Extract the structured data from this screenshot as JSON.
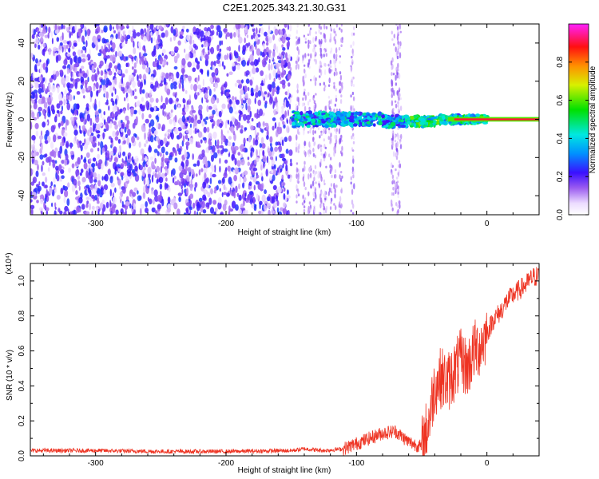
{
  "title": "C2E1.2025.343.21.30.G31",
  "chart_data": [
    {
      "type": "heatmap",
      "title": "C2E1.2025.343.21.30.G31",
      "xlabel": "Height of straight line (km)",
      "ylabel": "Frequency (Hz)",
      "xlim": [
        -350,
        40
      ],
      "ylim": [
        -50,
        50
      ],
      "x_ticks": [
        -300,
        -200,
        -100,
        0
      ],
      "y_ticks": [
        -40,
        -20,
        0,
        20,
        40
      ],
      "colorbar": {
        "label": "Normalized spectral amplitude",
        "range": [
          0,
          1
        ],
        "ticks": [
          "0.0",
          "0.2",
          "0.4",
          "0.6",
          "0.8"
        ]
      },
      "description_regions": [
        {
          "x_range": [
            -350,
            -150
          ],
          "freq_range": [
            -50,
            50
          ],
          "amplitude": 0.15
        },
        {
          "x_range": [
            -150,
            -110
          ],
          "freq_range": [
            -50,
            50
          ],
          "amplitude": 0.08
        },
        {
          "x_range": [
            -150,
            0
          ],
          "freq_range": [
            -5,
            5
          ],
          "amplitude": 0.45
        },
        {
          "x_range": [
            0,
            40
          ],
          "freq_range": [
            -1,
            1
          ],
          "amplitude": 0.95
        }
      ]
    },
    {
      "type": "line",
      "xlabel": "Height of straight line (km)",
      "ylabel": "SNR (10 * v/v)",
      "y_scale_label": "(x10⁴)",
      "xlim": [
        -350,
        40
      ],
      "ylim": [
        0,
        1.1
      ],
      "x_ticks": [
        -300,
        -200,
        -100,
        0
      ],
      "y_ticks": [
        "0.0",
        "0.2",
        "0.4",
        "0.6",
        "0.8",
        "1.0"
      ],
      "series": [
        {
          "name": "SNR",
          "color": "#ee3322",
          "x": [
            -350,
            -300,
            -250,
            -200,
            -150,
            -140,
            -125,
            -110,
            -100,
            -90,
            -80,
            -70,
            -60,
            -50,
            -45,
            -40,
            -35,
            -30,
            -25,
            -20,
            -15,
            -10,
            -5,
            0,
            5,
            10,
            15,
            20,
            25,
            30,
            35,
            40
          ],
          "y": [
            0.03,
            0.03,
            0.025,
            0.025,
            0.03,
            0.04,
            0.03,
            0.04,
            0.07,
            0.1,
            0.13,
            0.14,
            0.08,
            0.05,
            0.18,
            0.4,
            0.45,
            0.42,
            0.48,
            0.55,
            0.5,
            0.6,
            0.63,
            0.7,
            0.78,
            0.82,
            0.88,
            0.92,
            0.95,
            0.98,
            1.02,
            1.03
          ]
        }
      ]
    }
  ]
}
